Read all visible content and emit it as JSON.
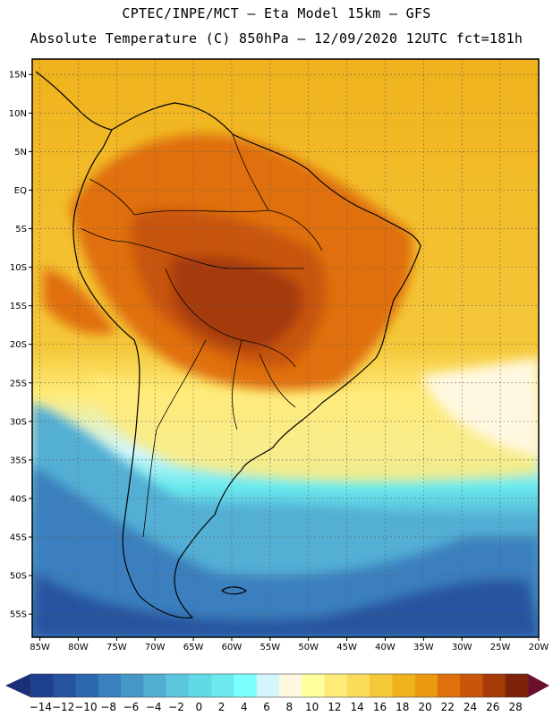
{
  "header": {
    "line1": "CPTEC/INPE/MCT –  Eta Model 15km – GFS",
    "line2": "Absolute Temperature (C) 850hPa – 12/09/2020 12UTC fct=181h"
  },
  "map": {
    "latitude_labels": [
      "15N",
      "10N",
      "5N",
      "EQ",
      "5S",
      "10S",
      "15S",
      "20S",
      "25S",
      "30S",
      "35S",
      "40S",
      "45S",
      "50S",
      "55S"
    ],
    "longitude_labels": [
      "85W",
      "80W",
      "75W",
      "70W",
      "65W",
      "60W",
      "55W",
      "50W",
      "45W",
      "40W",
      "35W",
      "30W",
      "25W",
      "20W"
    ],
    "grid_lat_values": [
      15,
      10,
      5,
      0,
      -5,
      -10,
      -15,
      -20,
      -25,
      -30,
      -35,
      -40,
      -45,
      -50,
      -55
    ],
    "grid_lon_values": [
      -85,
      -80,
      -75,
      -70,
      -65,
      -60,
      -55,
      -50,
      -45,
      -40,
      -35,
      -30,
      -25,
      -20
    ],
    "lat_range": [
      -58,
      17
    ],
    "lon_range": [
      -86,
      -20
    ]
  },
  "colorbar": {
    "labels": [
      "-14",
      "-12",
      "-10",
      "-8",
      "-6",
      "-4",
      "-2",
      "0",
      "2",
      "4",
      "6",
      "8",
      "10",
      "12",
      "14",
      "16",
      "18",
      "20",
      "22",
      "24",
      "26",
      "28"
    ],
    "colors": [
      "#1f3f8f",
      "#26529f",
      "#2d68ae",
      "#3a7fbe",
      "#4696c8",
      "#52afd4",
      "#5cc6de",
      "#62dae6",
      "#6be9ee",
      "#7bffff",
      "#d2f6fa",
      "#fff8e1",
      "#ffff9e",
      "#ffeb7a",
      "#fbdc5a",
      "#f5c83a",
      "#f0b21c",
      "#eb9a10",
      "#e0700b",
      "#c85509",
      "#a53b07",
      "#7e230a"
    ],
    "under_color": "#1a2e7a",
    "over_color": "#6b0f2a"
  }
}
